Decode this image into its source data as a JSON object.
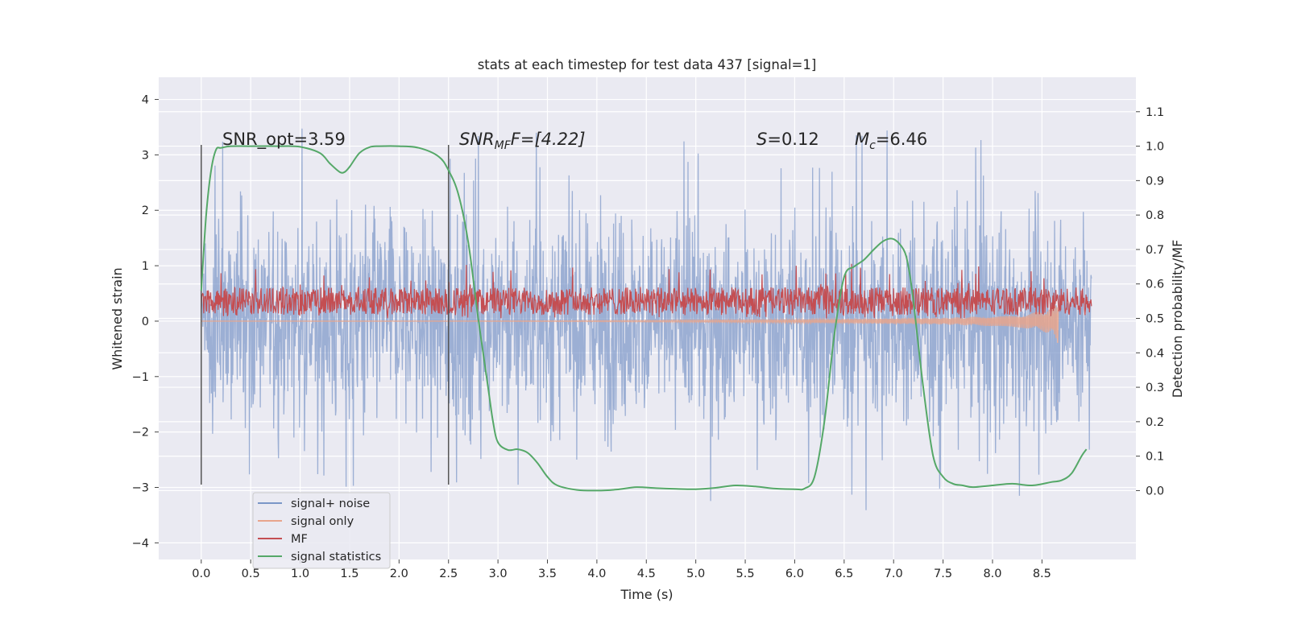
{
  "chart_data": {
    "type": "line",
    "title": "stats at each timestep for test data 437 [signal=1]",
    "xlabel": "Time (s)",
    "ylabel_left": "Whitened strain",
    "ylabel_right": "Detection probability/MF",
    "xlim": [
      -0.43,
      9.45
    ],
    "ylim_left": [
      -4.3,
      4.4
    ],
    "ylim_right": [
      -0.2,
      1.2
    ],
    "x_ticks": [
      "0.0",
      "0.5",
      "1.0",
      "1.5",
      "2.0",
      "2.5",
      "3.0",
      "3.5",
      "4.0",
      "4.5",
      "5.0",
      "5.5",
      "6.0",
      "6.5",
      "7.0",
      "7.5",
      "8.0",
      "8.5"
    ],
    "y_ticks_left": [
      "−4",
      "−3",
      "−2",
      "−1",
      "0",
      "1",
      "2",
      "3",
      "4"
    ],
    "y_ticks_right": [
      "0.0",
      "0.1",
      "0.2",
      "0.3",
      "0.4",
      "0.5",
      "0.6",
      "0.7",
      "0.8",
      "0.9",
      "1.0",
      "1.1"
    ],
    "grid": true,
    "legend_position": "lower-left",
    "annotations": {
      "snr_opt": "SNR_opt=3.59",
      "snr_mf_prefix": "SNR",
      "snr_mf_sub": "MF",
      "snr_mf_suffix": "F=[4.22]",
      "s_prefix": "S",
      "s_value": "=0.12",
      "mc_prefix": "M",
      "mc_sub": "c",
      "mc_value": "=6.46"
    },
    "vertical_markers": [
      {
        "x": 0.0,
        "y_top": 3.18,
        "y_bottom": -2.95
      },
      {
        "x": 2.5,
        "y_top": 3.18,
        "y_bottom": -2.95
      }
    ],
    "series": [
      {
        "name": "signal+ noise",
        "color": "#7a96c7",
        "axis": "left",
        "kind": "noise",
        "x_range": [
          0.0,
          9.0
        ],
        "typical_range": [
          -2.6,
          2.6
        ],
        "extremes": [
          -3.78,
          4.02
        ]
      },
      {
        "name": "signal only",
        "color": "#e8a58c",
        "axis": "left",
        "kind": "chirp",
        "x": [
          0.0,
          1.0,
          2.0,
          3.0,
          4.0,
          5.0,
          6.0,
          7.0,
          7.5,
          8.0,
          8.3,
          8.5,
          8.6,
          8.65,
          8.67
        ],
        "amplitude": [
          0.0,
          0.0,
          0.002,
          0.005,
          0.01,
          0.02,
          0.03,
          0.05,
          0.06,
          0.09,
          0.12,
          0.18,
          0.25,
          0.35,
          0.45
        ]
      },
      {
        "name": "MF",
        "color": "#c44e52",
        "axis": "right",
        "kind": "band",
        "x_range": [
          0.0,
          9.0
        ],
        "typical_range": [
          0.51,
          0.59
        ],
        "extremes": [
          0.5,
          0.66
        ]
      },
      {
        "name": "signal statistics",
        "color": "#55a868",
        "axis": "right",
        "x": [
          0.0,
          0.05,
          0.1,
          0.15,
          0.2,
          0.3,
          0.5,
          0.8,
          1.0,
          1.2,
          1.3,
          1.4,
          1.45,
          1.5,
          1.6,
          1.7,
          1.8,
          2.0,
          2.2,
          2.4,
          2.5,
          2.6,
          2.7,
          2.8,
          2.9,
          2.95,
          3.0,
          3.1,
          3.2,
          3.3,
          3.4,
          3.5,
          3.6,
          3.8,
          4.0,
          4.2,
          4.4,
          4.6,
          4.8,
          5.0,
          5.2,
          5.4,
          5.6,
          5.8,
          6.0,
          6.1,
          6.2,
          6.3,
          6.4,
          6.5,
          6.6,
          6.7,
          6.8,
          6.9,
          7.0,
          7.1,
          7.15,
          7.2,
          7.3,
          7.4,
          7.5,
          7.6,
          7.7,
          7.8,
          8.0,
          8.2,
          8.4,
          8.6,
          8.7,
          8.8,
          8.9,
          8.95
        ],
        "y": [
          0.58,
          0.8,
          0.93,
          0.99,
          0.995,
          1.0,
          1.0,
          1.0,
          0.998,
          0.98,
          0.95,
          0.925,
          0.925,
          0.94,
          0.98,
          0.997,
          1.0,
          1.0,
          0.995,
          0.97,
          0.93,
          0.86,
          0.72,
          0.5,
          0.3,
          0.2,
          0.14,
          0.118,
          0.12,
          0.11,
          0.08,
          0.04,
          0.015,
          0.002,
          0.0,
          0.003,
          0.01,
          0.007,
          0.005,
          0.004,
          0.008,
          0.015,
          0.012,
          0.006,
          0.004,
          0.006,
          0.04,
          0.2,
          0.45,
          0.62,
          0.65,
          0.67,
          0.7,
          0.725,
          0.73,
          0.7,
          0.65,
          0.55,
          0.3,
          0.1,
          0.04,
          0.02,
          0.015,
          0.01,
          0.015,
          0.02,
          0.015,
          0.025,
          0.03,
          0.05,
          0.1,
          0.12
        ]
      }
    ]
  }
}
